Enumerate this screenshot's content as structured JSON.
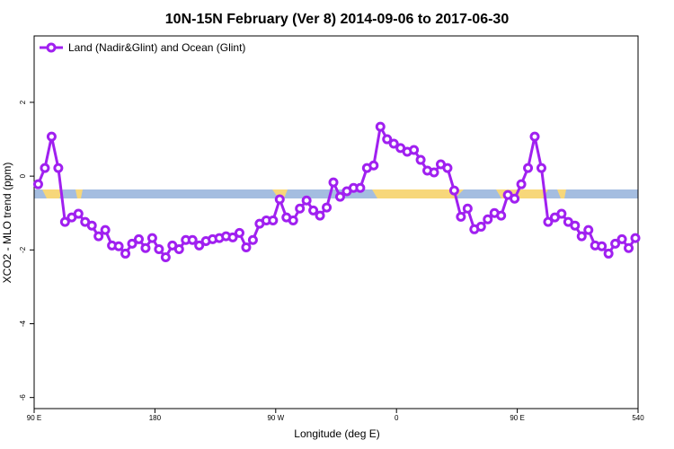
{
  "chart_data": {
    "type": "line",
    "title": "10N-15N February (Ver 8)   2014-09-06 to 2017-06-30",
    "x_label": "Longitude (deg E)",
    "y_label": "XCO2 - MLO trend (ppm)",
    "legend": "topleft",
    "x": [
      93,
      98,
      103,
      108,
      113,
      118,
      123,
      128,
      133,
      138,
      143,
      148,
      153,
      158,
      163,
      168,
      173,
      178,
      183,
      188,
      193,
      198,
      203,
      208,
      213,
      218,
      223,
      228,
      233,
      238,
      243,
      248,
      253,
      258,
      263,
      268,
      273,
      278,
      283,
      288,
      293,
      298,
      303,
      308,
      313,
      318,
      323,
      328,
      333,
      338,
      343,
      348,
      353,
      358,
      363,
      368,
      373,
      378,
      383,
      388,
      393,
      398,
      403,
      408,
      413,
      418,
      423,
      428,
      433,
      438,
      443,
      448,
      453,
      458,
      463,
      468,
      473,
      478,
      483,
      488,
      493,
      498,
      503,
      508,
      513,
      518,
      523,
      528,
      533,
      538
    ],
    "series": [
      {
        "name": "Land (Nadir&Glint) and Ocean (Glint)",
        "color": "#a020f0",
        "values": [
          -0.22,
          0.22,
          1.07,
          0.22,
          -1.24,
          -1.12,
          -1.02,
          -1.24,
          -1.34,
          -1.63,
          -1.46,
          -1.88,
          -1.9,
          -2.1,
          -1.83,
          -1.71,
          -1.95,
          -1.68,
          -1.98,
          -2.2,
          -1.88,
          -1.98,
          -1.73,
          -1.73,
          -1.88,
          -1.76,
          -1.71,
          -1.68,
          -1.63,
          -1.66,
          -1.54,
          -1.93,
          -1.73,
          -1.29,
          -1.2,
          -1.2,
          -0.63,
          -1.12,
          -1.2,
          -0.88,
          -0.66,
          -0.93,
          -1.07,
          -0.85,
          -0.17,
          -0.56,
          -0.41,
          -0.32,
          -0.32,
          0.22,
          0.29,
          1.34,
          1.0,
          0.88,
          0.76,
          0.66,
          0.71,
          0.44,
          0.15,
          0.1,
          0.32,
          0.22,
          -0.39,
          -1.1,
          -0.88,
          -1.44,
          -1.37,
          -1.17,
          -1.0,
          -1.07,
          -0.51,
          -0.61,
          -0.22,
          0.22,
          1.07,
          0.22,
          -1.24,
          -1.12,
          -1.02,
          -1.24,
          -1.34,
          -1.63,
          -1.46,
          -1.88,
          -1.9,
          -2.1,
          -1.83,
          -1.71,
          -1.95,
          -1.68
        ]
      }
    ],
    "xlim": [
      90,
      540
    ],
    "xticks": [
      {
        "value": 90,
        "label": "90 E"
      },
      180,
      {
        "value": 270,
        "label": "90 W"
      },
      {
        "value": 360,
        "label": "0"
      },
      {
        "value": 450,
        "label": "90 E"
      },
      540
    ],
    "ylim": [
      -6.3,
      3.8
    ],
    "yticks": [
      -6,
      -4,
      -2,
      0,
      2
    ]
  }
}
